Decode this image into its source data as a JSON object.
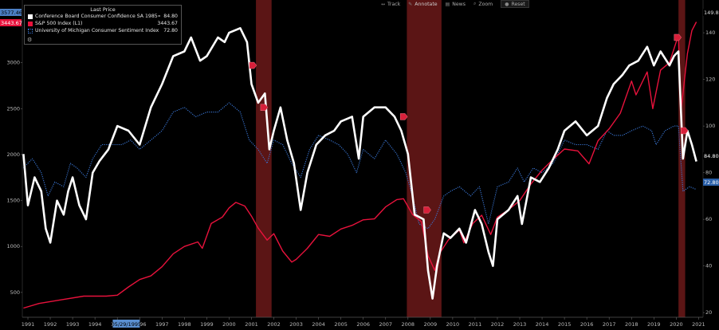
{
  "legend": {
    "header": "Last Price",
    "rows": [
      {
        "name": "Conference Board Consumer Confidence SA 1985=100  (R1)",
        "value": "84.80",
        "color": "#ffffff",
        "style": "solid"
      },
      {
        "name": "S&P 500 Index  (L1)",
        "value": "3443.67",
        "color": "#e8123c",
        "style": "solid"
      },
      {
        "name": "University of Michigan Consumer Sentiment Index  (R1)",
        "value": "72.80",
        "color": "#3a78d8",
        "style": "dotted"
      }
    ]
  },
  "toolbar": [
    {
      "icon": "track-icon",
      "label": "Track"
    },
    {
      "icon": "annotate-icon",
      "label": "Annotate"
    },
    {
      "icon": "news-icon",
      "label": "News"
    },
    {
      "icon": "zoom-icon",
      "label": "Zoom"
    },
    {
      "icon": "reset-icon",
      "label": "Reset"
    }
  ],
  "chart_data": {
    "type": "line",
    "x_ticks": [
      "1991",
      "1992",
      "1993",
      "1994",
      "1995",
      "1996",
      "1997",
      "1998",
      "1999",
      "2000",
      "2001",
      "2002",
      "2003",
      "2004",
      "2005",
      "2006",
      "2007",
      "2008",
      "2009",
      "2010",
      "2011",
      "2012",
      "2013",
      "2014",
      "2015",
      "2016",
      "2017",
      "2018",
      "2019",
      "2020",
      "2021"
    ],
    "x_range": [
      1990.75,
      2021.2
    ],
    "x_highlight_label": "05/29/1995",
    "left_axis": {
      "ticks": [
        "500",
        "1000",
        "1500",
        "2000",
        "2500",
        "3000"
      ],
      "range": [
        230,
        3630
      ],
      "top_label": "3577.46",
      "last_label": "3443.67"
    },
    "right_axis": {
      "ticks": [
        "20",
        "40",
        "60",
        "80",
        "100",
        "120",
        "140"
      ],
      "range": [
        18,
        152
      ],
      "top_label": "149.80",
      "last_labels": [
        "84.80",
        "72.80"
      ]
    },
    "recessions": [
      [
        2001.2,
        2001.9
      ],
      [
        2007.95,
        2009.5
      ],
      [
        2020.1,
        2020.4
      ]
    ],
    "series": [
      {
        "name": "Conference Board Consumer Confidence SA 1985=100",
        "axis": "right",
        "color": "#ffffff",
        "points": [
          [
            1990.8,
            88
          ],
          [
            1991.0,
            66
          ],
          [
            1991.3,
            78
          ],
          [
            1991.6,
            72
          ],
          [
            1991.8,
            56
          ],
          [
            1992.0,
            50
          ],
          [
            1992.3,
            68
          ],
          [
            1992.6,
            62
          ],
          [
            1992.8,
            72
          ],
          [
            1993.0,
            78
          ],
          [
            1993.3,
            66
          ],
          [
            1993.6,
            60
          ],
          [
            1993.9,
            80
          ],
          [
            1994.2,
            85
          ],
          [
            1994.6,
            90
          ],
          [
            1995.0,
            100
          ],
          [
            1995.5,
            98
          ],
          [
            1996.0,
            92
          ],
          [
            1996.5,
            108
          ],
          [
            1997.0,
            118
          ],
          [
            1997.5,
            130
          ],
          [
            1998.0,
            132
          ],
          [
            1998.3,
            138
          ],
          [
            1998.7,
            128
          ],
          [
            1999.0,
            130
          ],
          [
            1999.5,
            138
          ],
          [
            1999.8,
            136
          ],
          [
            2000.0,
            140
          ],
          [
            2000.5,
            142
          ],
          [
            2000.8,
            136
          ],
          [
            2001.0,
            118
          ],
          [
            2001.3,
            110
          ],
          [
            2001.6,
            114
          ],
          [
            2001.8,
            90
          ],
          [
            2002.0,
            98
          ],
          [
            2002.3,
            108
          ],
          [
            2002.6,
            94
          ],
          [
            2002.9,
            84
          ],
          [
            2003.2,
            64
          ],
          [
            2003.5,
            80
          ],
          [
            2003.9,
            92
          ],
          [
            2004.3,
            96
          ],
          [
            2004.7,
            98
          ],
          [
            2005.0,
            102
          ],
          [
            2005.5,
            104
          ],
          [
            2005.8,
            86
          ],
          [
            2006.0,
            104
          ],
          [
            2006.5,
            108
          ],
          [
            2007.0,
            108
          ],
          [
            2007.4,
            104
          ],
          [
            2007.7,
            98
          ],
          [
            2008.0,
            88
          ],
          [
            2008.3,
            62
          ],
          [
            2008.7,
            60
          ],
          [
            2008.9,
            38
          ],
          [
            2009.1,
            26
          ],
          [
            2009.3,
            40
          ],
          [
            2009.6,
            54
          ],
          [
            2009.9,
            52
          ],
          [
            2010.3,
            56
          ],
          [
            2010.6,
            50
          ],
          [
            2011.0,
            64
          ],
          [
            2011.3,
            58
          ],
          [
            2011.6,
            46
          ],
          [
            2011.8,
            40
          ],
          [
            2012.0,
            60
          ],
          [
            2012.5,
            64
          ],
          [
            2012.9,
            70
          ],
          [
            2013.1,
            58
          ],
          [
            2013.5,
            78
          ],
          [
            2013.9,
            76
          ],
          [
            2014.3,
            82
          ],
          [
            2014.7,
            90
          ],
          [
            2015.0,
            98
          ],
          [
            2015.5,
            102
          ],
          [
            2016.0,
            96
          ],
          [
            2016.5,
            100
          ],
          [
            2016.9,
            112
          ],
          [
            2017.2,
            118
          ],
          [
            2017.6,
            122
          ],
          [
            2017.9,
            126
          ],
          [
            2018.3,
            128
          ],
          [
            2018.7,
            134
          ],
          [
            2019.0,
            126
          ],
          [
            2019.3,
            132
          ],
          [
            2019.7,
            126
          ],
          [
            2019.9,
            130
          ],
          [
            2020.1,
            132
          ],
          [
            2020.3,
            86
          ],
          [
            2020.5,
            98
          ],
          [
            2020.7,
            92
          ],
          [
            2020.9,
            84.8
          ]
        ]
      },
      {
        "name": "S&P 500 Index",
        "axis": "left",
        "color": "#e8123c",
        "points": [
          [
            1990.8,
            330
          ],
          [
            1991.5,
            380
          ],
          [
            1992.5,
            420
          ],
          [
            1993.5,
            460
          ],
          [
            1994.5,
            460
          ],
          [
            1995.0,
            470
          ],
          [
            1995.5,
            560
          ],
          [
            1996.0,
            640
          ],
          [
            1996.5,
            680
          ],
          [
            1997.0,
            780
          ],
          [
            1997.5,
            920
          ],
          [
            1998.0,
            1000
          ],
          [
            1998.6,
            1050
          ],
          [
            1998.8,
            980
          ],
          [
            1999.2,
            1250
          ],
          [
            1999.7,
            1320
          ],
          [
            2000.0,
            1420
          ],
          [
            2000.3,
            1480
          ],
          [
            2000.7,
            1440
          ],
          [
            2001.0,
            1330
          ],
          [
            2001.3,
            1200
          ],
          [
            2001.7,
            1070
          ],
          [
            2002.0,
            1140
          ],
          [
            2002.4,
            950
          ],
          [
            2002.8,
            830
          ],
          [
            2003.0,
            860
          ],
          [
            2003.5,
            980
          ],
          [
            2004.0,
            1130
          ],
          [
            2004.5,
            1110
          ],
          [
            2005.0,
            1190
          ],
          [
            2005.5,
            1230
          ],
          [
            2006.0,
            1290
          ],
          [
            2006.5,
            1300
          ],
          [
            2007.0,
            1430
          ],
          [
            2007.5,
            1510
          ],
          [
            2007.8,
            1520
          ],
          [
            2008.2,
            1350
          ],
          [
            2008.6,
            1270
          ],
          [
            2008.9,
            900
          ],
          [
            2009.2,
            740
          ],
          [
            2009.4,
            920
          ],
          [
            2009.8,
            1070
          ],
          [
            2010.3,
            1180
          ],
          [
            2010.5,
            1040
          ],
          [
            2010.9,
            1250
          ],
          [
            2011.3,
            1340
          ],
          [
            2011.7,
            1130
          ],
          [
            2012.0,
            1320
          ],
          [
            2012.5,
            1400
          ],
          [
            2013.0,
            1500
          ],
          [
            2013.5,
            1680
          ],
          [
            2014.0,
            1830
          ],
          [
            2014.5,
            1950
          ],
          [
            2015.0,
            2060
          ],
          [
            2015.6,
            2040
          ],
          [
            2016.1,
            1900
          ],
          [
            2016.5,
            2150
          ],
          [
            2017.0,
            2280
          ],
          [
            2017.5,
            2450
          ],
          [
            2018.0,
            2800
          ],
          [
            2018.2,
            2650
          ],
          [
            2018.7,
            2900
          ],
          [
            2018.95,
            2500
          ],
          [
            2019.3,
            2920
          ],
          [
            2019.7,
            3000
          ],
          [
            2020.1,
            3300
          ],
          [
            2020.2,
            2450
          ],
          [
            2020.5,
            3100
          ],
          [
            2020.7,
            3350
          ],
          [
            2020.9,
            3443.67
          ]
        ]
      },
      {
        "name": "University of Michigan Consumer Sentiment Index",
        "axis": "right",
        "color": "#3a78d8",
        "points": [
          [
            1990.8,
            82
          ],
          [
            1991.2,
            86
          ],
          [
            1991.6,
            80
          ],
          [
            1991.9,
            70
          ],
          [
            1992.2,
            76
          ],
          [
            1992.6,
            74
          ],
          [
            1992.9,
            84
          ],
          [
            1993.2,
            82
          ],
          [
            1993.6,
            78
          ],
          [
            1993.9,
            86
          ],
          [
            1994.3,
            92
          ],
          [
            1994.8,
            92
          ],
          [
            1995.2,
            92
          ],
          [
            1995.6,
            94
          ],
          [
            1996.0,
            90
          ],
          [
            1996.5,
            94
          ],
          [
            1997.0,
            98
          ],
          [
            1997.5,
            106
          ],
          [
            1998.0,
            108
          ],
          [
            1998.5,
            104
          ],
          [
            1999.0,
            106
          ],
          [
            1999.5,
            106
          ],
          [
            2000.0,
            110
          ],
          [
            2000.5,
            106
          ],
          [
            2000.9,
            94
          ],
          [
            2001.3,
            90
          ],
          [
            2001.7,
            84
          ],
          [
            2002.0,
            94
          ],
          [
            2002.4,
            92
          ],
          [
            2002.8,
            84
          ],
          [
            2003.2,
            78
          ],
          [
            2003.6,
            90
          ],
          [
            2004.0,
            96
          ],
          [
            2004.5,
            94
          ],
          [
            2004.9,
            92
          ],
          [
            2005.3,
            88
          ],
          [
            2005.7,
            80
          ],
          [
            2006.0,
            90
          ],
          [
            2006.5,
            86
          ],
          [
            2007.0,
            94
          ],
          [
            2007.5,
            88
          ],
          [
            2007.9,
            80
          ],
          [
            2008.2,
            70
          ],
          [
            2008.5,
            58
          ],
          [
            2008.9,
            56
          ],
          [
            2009.2,
            60
          ],
          [
            2009.6,
            70
          ],
          [
            2009.9,
            72
          ],
          [
            2010.3,
            74
          ],
          [
            2010.8,
            70
          ],
          [
            2011.2,
            74
          ],
          [
            2011.6,
            58
          ],
          [
            2012.0,
            74
          ],
          [
            2012.5,
            76
          ],
          [
            2012.9,
            82
          ],
          [
            2013.2,
            76
          ],
          [
            2013.6,
            82
          ],
          [
            2014.0,
            80
          ],
          [
            2014.5,
            84
          ],
          [
            2015.0,
            94
          ],
          [
            2015.5,
            92
          ],
          [
            2016.0,
            92
          ],
          [
            2016.5,
            90
          ],
          [
            2016.9,
            98
          ],
          [
            2017.2,
            96
          ],
          [
            2017.6,
            96
          ],
          [
            2018.0,
            98
          ],
          [
            2018.5,
            100
          ],
          [
            2018.9,
            98
          ],
          [
            2019.1,
            92
          ],
          [
            2019.5,
            98
          ],
          [
            2019.9,
            100
          ],
          [
            2020.1,
            100
          ],
          [
            2020.3,
            72
          ],
          [
            2020.6,
            74
          ],
          [
            2020.9,
            72.8
          ]
        ]
      }
    ],
    "annotations": [
      {
        "x": 2001.05,
        "y": 126,
        "axis": "right"
      },
      {
        "x": 2001.55,
        "y": 108,
        "axis": "right"
      },
      {
        "x": 2007.8,
        "y": 104,
        "axis": "right"
      },
      {
        "x": 2008.85,
        "y": 64,
        "axis": "right"
      },
      {
        "x": 2020.05,
        "y": 138,
        "axis": "right"
      },
      {
        "x": 2020.35,
        "y": 98,
        "axis": "right"
      }
    ]
  }
}
